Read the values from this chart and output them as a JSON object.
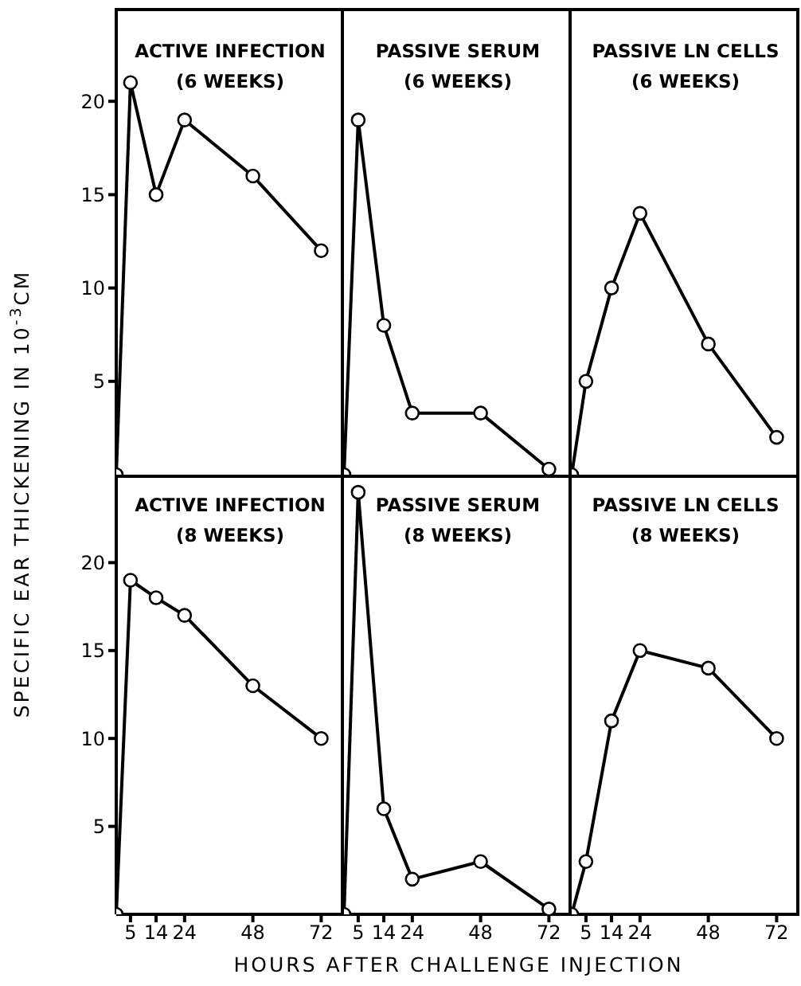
{
  "chart_data": [
    {
      "type": "line",
      "title": "ACTIVE INFECTION\n(6 WEEKS)",
      "ylabel": "SPECIFIC EAR THICKENING IN 10$^{-3}$CM",
      "x": [
        0,
        5,
        14,
        24,
        48,
        72
      ],
      "xlim": [
        0,
        80
      ],
      "xticks": [
        5,
        14,
        24,
        48,
        72
      ],
      "ylim": [
        0,
        25
      ],
      "yticks": [
        5,
        10,
        15,
        20
      ],
      "marker": "circle",
      "tick_labels": "y",
      "series": [
        {
          "color": "#000000",
          "values": [
            0,
            21,
            15,
            19,
            16,
            12
          ]
        }
      ]
    },
    {
      "type": "line",
      "title": "PASSIVE SERUM\n(6 WEEKS)",
      "x": [
        0,
        5,
        14,
        24,
        48,
        72
      ],
      "xlim": [
        0,
        80
      ],
      "xticks": [
        5,
        14,
        24,
        48,
        72
      ],
      "ylim": [
        0,
        25
      ],
      "yticks": [
        5,
        10,
        15,
        20
      ],
      "marker": "circle",
      "tick_labels": false,
      "series": [
        {
          "color": "#000000",
          "values": [
            0,
            19,
            8,
            3.3,
            3.3,
            0.3
          ]
        }
      ]
    },
    {
      "type": "line",
      "title": "PASSIVE LN CELLS\n(6 WEEKS)",
      "x": [
        0,
        5,
        14,
        24,
        48,
        72
      ],
      "xlim": [
        0,
        80
      ],
      "xticks": [
        5,
        14,
        24,
        48,
        72
      ],
      "ylim": [
        0,
        25
      ],
      "yticks": [
        5,
        10,
        15,
        20
      ],
      "marker": "circle",
      "tick_labels": false,
      "series": [
        {
          "color": "#000000",
          "values": [
            0,
            5,
            10,
            14,
            7,
            2
          ]
        }
      ]
    },
    {
      "type": "line",
      "title": "ACTIVE INFECTION\n(8 WEEKS)",
      "x": [
        0,
        5,
        14,
        24,
        48,
        72
      ],
      "xlim": [
        0,
        80
      ],
      "xticks": [
        5,
        14,
        24,
        48,
        72
      ],
      "ylim": [
        0,
        25
      ],
      "yticks": [
        5,
        10,
        15,
        20
      ],
      "marker": "circle",
      "series": [
        {
          "color": "#000000",
          "values": [
            0,
            19,
            18,
            17,
            13,
            10
          ]
        }
      ]
    },
    {
      "type": "line",
      "title": "PASSIVE SERUM\n(8 WEEKS)",
      "xlabel": "HOURS AFTER CHALLENGE INJECTION",
      "x": [
        0,
        5,
        14,
        24,
        48,
        72
      ],
      "xlim": [
        0,
        80
      ],
      "xticks": [
        5,
        14,
        24,
        48,
        72
      ],
      "ylim": [
        0,
        25
      ],
      "yticks": [
        5,
        10,
        15,
        20
      ],
      "marker": "circle",
      "tick_labels": "x",
      "series": [
        {
          "color": "#000000",
          "values": [
            0,
            24,
            6,
            2,
            3,
            0.3
          ]
        }
      ]
    },
    {
      "type": "line",
      "title": "PASSIVE LN CELLS\n(8 WEEKS)",
      "x": [
        0,
        5,
        14,
        24,
        48,
        72
      ],
      "xlim": [
        0,
        80
      ],
      "xticks": [
        5,
        14,
        24,
        48,
        72
      ],
      "ylim": [
        0,
        25
      ],
      "yticks": [
        5,
        10,
        15,
        20
      ],
      "marker": "circle",
      "tick_labels": "x",
      "series": [
        {
          "color": "#000000",
          "values": [
            0,
            3,
            11,
            15,
            14,
            10
          ]
        }
      ]
    }
  ]
}
